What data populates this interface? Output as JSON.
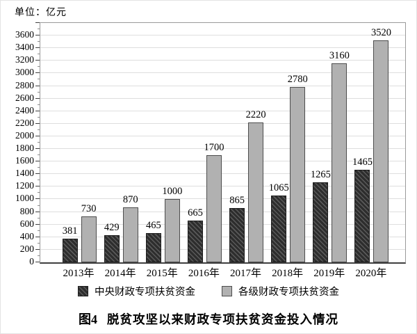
{
  "unit_label": "单位：亿元",
  "caption": {
    "prefix": "图4",
    "title": "脱贫攻坚以来财政专项扶贫资金投入情况"
  },
  "colors": {
    "series_dark": "#333333",
    "series_dark_hatch_line": "#5a5a5a",
    "series_light": "#b1b1b1",
    "gridline": "#dedede",
    "axis": "#3f3f3f",
    "plot_border": "#9a9a9a",
    "text": "#000000"
  },
  "chart_data": {
    "type": "bar",
    "title": "脱贫攻坚以来财政专项扶贫资金投入情况",
    "xlabel": "",
    "ylabel": "亿元",
    "categories": [
      "2013年",
      "2014年",
      "2015年",
      "2016年",
      "2017年",
      "2018年",
      "2019年",
      "2020年"
    ],
    "series": [
      {
        "name": "中央财政专项扶贫资金",
        "values": [
          381,
          429,
          465,
          665,
          865,
          1065,
          1265,
          1465
        ],
        "style": "dark-hatched"
      },
      {
        "name": "各级财政专项扶贫资金",
        "values": [
          730,
          870,
          1000,
          1700,
          2220,
          2780,
          3160,
          3520
        ],
        "style": "light-gray"
      }
    ],
    "data_labels": true,
    "ylim": [
      0,
      3800
    ],
    "ytick_step": 200,
    "ytick_labels": [
      0,
      200,
      400,
      600,
      800,
      1000,
      1200,
      1400,
      1600,
      1800,
      2000,
      2200,
      2400,
      2600,
      2800,
      3000,
      3200,
      3400,
      3600
    ],
    "grid": true,
    "legend_position": "bottom"
  }
}
